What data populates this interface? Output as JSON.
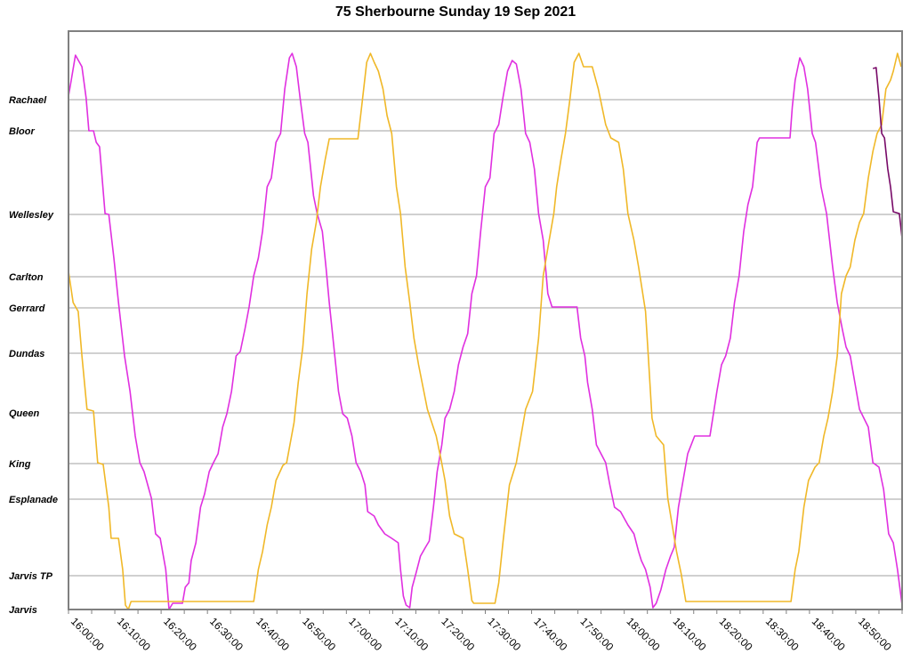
{
  "chart_data": {
    "type": "line",
    "title": "75 Sherbourne Sunday 19 Sep 2021",
    "xlabel": "",
    "ylabel": "",
    "x_start": "16:00:00",
    "x_range_minutes": [
      0,
      180
    ],
    "ylim": [
      0,
      6.5
    ],
    "grid": "horizontal at stops",
    "stops": [
      {
        "name": "Jarvis",
        "pos": 0
      },
      {
        "name": "Jarvis TP",
        "pos": 0.38
      },
      {
        "name": "Esplanade",
        "pos": 1.24
      },
      {
        "name": "King",
        "pos": 1.64
      },
      {
        "name": "Queen",
        "pos": 2.21
      },
      {
        "name": "Dundas",
        "pos": 2.88
      },
      {
        "name": "Gerrard",
        "pos": 3.39
      },
      {
        "name": "Carlton",
        "pos": 3.74
      },
      {
        "name": "Wellesley",
        "pos": 4.44
      },
      {
        "name": "Bloor",
        "pos": 5.38
      },
      {
        "name": "Rachael",
        "pos": 5.73
      }
    ],
    "x_ticks": [
      "16:00:00",
      "16:10:00",
      "16:20:00",
      "16:30:00",
      "16:40:00",
      "16:50:00",
      "17:00:00",
      "17:10:00",
      "17:20:00",
      "17:30:00",
      "17:40:00",
      "17:50:00",
      "18:00:00",
      "18:10:00",
      "18:20:00",
      "18:30:00",
      "18:40:00",
      "18:50:00"
    ],
    "series": [
      {
        "name": "vehicle-magenta",
        "color": "#e030e0",
        "points": [
          [
            0,
            5.77
          ],
          [
            0.6,
            5.95
          ],
          [
            1.5,
            6.23
          ],
          [
            2.9,
            6.1
          ],
          [
            3.8,
            5.75
          ],
          [
            4.4,
            5.38
          ],
          [
            5.4,
            5.38
          ],
          [
            6,
            5.25
          ],
          [
            6.7,
            5.2
          ],
          [
            7.9,
            4.45
          ],
          [
            8.7,
            4.44
          ],
          [
            9.8,
            3.95
          ],
          [
            10.8,
            3.45
          ],
          [
            12.1,
            2.85
          ],
          [
            13.3,
            2.45
          ],
          [
            14.4,
            1.95
          ],
          [
            15.4,
            1.65
          ],
          [
            16.3,
            1.55
          ],
          [
            17.9,
            1.25
          ],
          [
            18.8,
            0.85
          ],
          [
            19.8,
            0.8
          ],
          [
            21,
            0.45
          ],
          [
            21.7,
            0
          ],
          [
            22.5,
            0.07
          ],
          [
            24.6,
            0.07
          ],
          [
            25.2,
            0.25
          ],
          [
            26,
            0.3
          ],
          [
            26.5,
            0.55
          ],
          [
            27.5,
            0.75
          ],
          [
            28.5,
            1.15
          ],
          [
            29.4,
            1.3
          ],
          [
            30.4,
            1.55
          ],
          [
            31.3,
            1.65
          ],
          [
            32.3,
            1.75
          ],
          [
            33.3,
            2.05
          ],
          [
            34.2,
            2.2
          ],
          [
            35.2,
            2.45
          ],
          [
            36.2,
            2.85
          ],
          [
            37.1,
            2.9
          ],
          [
            38.1,
            3.15
          ],
          [
            39,
            3.4
          ],
          [
            40,
            3.75
          ],
          [
            41,
            3.95
          ],
          [
            41.9,
            4.25
          ],
          [
            42.9,
            4.75
          ],
          [
            43.8,
            4.85
          ],
          [
            44.8,
            5.25
          ],
          [
            45.8,
            5.35
          ],
          [
            46.7,
            5.85
          ],
          [
            47.7,
            6.2
          ],
          [
            48.3,
            6.25
          ],
          [
            49.2,
            6.1
          ],
          [
            50,
            5.75
          ],
          [
            51,
            5.35
          ],
          [
            51.7,
            5.25
          ],
          [
            52.9,
            4.65
          ],
          [
            53.7,
            4.45
          ],
          [
            54.8,
            4.25
          ],
          [
            55.6,
            3.85
          ],
          [
            56.3,
            3.45
          ],
          [
            57.3,
            2.95
          ],
          [
            58.3,
            2.45
          ],
          [
            59.2,
            2.2
          ],
          [
            60.2,
            2.15
          ],
          [
            61.2,
            1.95
          ],
          [
            62.1,
            1.65
          ],
          [
            63.1,
            1.55
          ],
          [
            64,
            1.4
          ],
          [
            64.6,
            1.1
          ],
          [
            66,
            1.05
          ],
          [
            66.9,
            0.95
          ],
          [
            68.3,
            0.85
          ],
          [
            69.8,
            0.8
          ],
          [
            71.2,
            0.75
          ],
          [
            71.7,
            0.45
          ],
          [
            72.3,
            0.15
          ],
          [
            72.9,
            0.05
          ],
          [
            73.7,
            0.02
          ],
          [
            74.2,
            0.25
          ],
          [
            75,
            0.4
          ],
          [
            76,
            0.6
          ],
          [
            77.1,
            0.7
          ],
          [
            77.9,
            0.77
          ],
          [
            78.8,
            1.15
          ],
          [
            79.6,
            1.55
          ],
          [
            80.6,
            1.85
          ],
          [
            81.3,
            2.15
          ],
          [
            82.3,
            2.25
          ],
          [
            83.3,
            2.45
          ],
          [
            84.2,
            2.75
          ],
          [
            85.2,
            2.95
          ],
          [
            86.2,
            3.1
          ],
          [
            87.1,
            3.55
          ],
          [
            88.1,
            3.75
          ],
          [
            89,
            4.25
          ],
          [
            90,
            4.75
          ],
          [
            91,
            4.85
          ],
          [
            91.9,
            5.35
          ],
          [
            92.9,
            5.45
          ],
          [
            93.8,
            5.75
          ],
          [
            94.8,
            6.05
          ],
          [
            95.8,
            6.17
          ],
          [
            96.7,
            6.13
          ],
          [
            97.7,
            5.85
          ],
          [
            98.7,
            5.35
          ],
          [
            99.6,
            5.25
          ],
          [
            100.6,
            4.95
          ],
          [
            101.5,
            4.45
          ],
          [
            102.5,
            4.15
          ],
          [
            103.5,
            3.55
          ],
          [
            104.4,
            3.4
          ],
          [
            109.8,
            3.4
          ],
          [
            110.6,
            3.05
          ],
          [
            111.5,
            2.85
          ],
          [
            112.1,
            2.55
          ],
          [
            113.1,
            2.25
          ],
          [
            114,
            1.85
          ],
          [
            115,
            1.75
          ],
          [
            116,
            1.65
          ],
          [
            116.9,
            1.4
          ],
          [
            117.9,
            1.15
          ],
          [
            119.2,
            1.1
          ],
          [
            120.8,
            0.95
          ],
          [
            122.1,
            0.85
          ],
          [
            123.1,
            0.65
          ],
          [
            123.7,
            0.55
          ],
          [
            124.6,
            0.45
          ],
          [
            125.6,
            0.25
          ],
          [
            126.2,
            0.02
          ],
          [
            126.9,
            0.07
          ],
          [
            127.9,
            0.22
          ],
          [
            129,
            0.45
          ],
          [
            130,
            0.6
          ],
          [
            130.8,
            0.7
          ],
          [
            131.7,
            1.15
          ],
          [
            132.7,
            1.45
          ],
          [
            133.7,
            1.75
          ],
          [
            135.2,
            1.95
          ],
          [
            138.5,
            1.95
          ],
          [
            139.4,
            2.25
          ],
          [
            140,
            2.45
          ],
          [
            141,
            2.75
          ],
          [
            141.9,
            2.85
          ],
          [
            142.9,
            3.05
          ],
          [
            143.8,
            3.45
          ],
          [
            144.8,
            3.75
          ],
          [
            145.8,
            4.25
          ],
          [
            146.7,
            4.55
          ],
          [
            147.7,
            4.75
          ],
          [
            148.7,
            5.25
          ],
          [
            149.2,
            5.3
          ],
          [
            155.8,
            5.3
          ],
          [
            156.3,
            5.65
          ],
          [
            156.9,
            5.95
          ],
          [
            157.9,
            6.2
          ],
          [
            158.8,
            6.1
          ],
          [
            159.6,
            5.85
          ],
          [
            160.6,
            5.35
          ],
          [
            161.3,
            5.25
          ],
          [
            162.5,
            4.75
          ],
          [
            163.7,
            4.45
          ],
          [
            165,
            3.85
          ],
          [
            166,
            3.45
          ],
          [
            167.1,
            3.15
          ],
          [
            167.9,
            2.95
          ],
          [
            168.8,
            2.85
          ],
          [
            169.8,
            2.55
          ],
          [
            170.8,
            2.25
          ],
          [
            172.7,
            2.05
          ],
          [
            173.7,
            1.65
          ],
          [
            175,
            1.6
          ],
          [
            176,
            1.35
          ],
          [
            177.1,
            0.85
          ],
          [
            178.1,
            0.75
          ],
          [
            179,
            0.45
          ],
          [
            180,
            0.05
          ]
        ]
      },
      {
        "name": "vehicle-gold",
        "color": "#f0b828",
        "points": [
          [
            0,
            3.8
          ],
          [
            1,
            3.45
          ],
          [
            2.1,
            3.35
          ],
          [
            2.9,
            2.85
          ],
          [
            4,
            2.25
          ],
          [
            5.4,
            2.23
          ],
          [
            6.3,
            1.65
          ],
          [
            7.5,
            1.63
          ],
          [
            8.7,
            1.15
          ],
          [
            9.2,
            0.8
          ],
          [
            10.8,
            0.8
          ],
          [
            11.7,
            0.45
          ],
          [
            12.3,
            0.05
          ],
          [
            12.9,
            0
          ],
          [
            13.5,
            0.09
          ],
          [
            40,
            0.09
          ],
          [
            41,
            0.45
          ],
          [
            41.9,
            0.65
          ],
          [
            42.9,
            0.95
          ],
          [
            43.8,
            1.15
          ],
          [
            44.8,
            1.45
          ],
          [
            46.3,
            1.62
          ],
          [
            47.1,
            1.65
          ],
          [
            48.7,
            2.1
          ],
          [
            49.6,
            2.55
          ],
          [
            50.6,
            2.95
          ],
          [
            51.5,
            3.55
          ],
          [
            52.5,
            4.05
          ],
          [
            53.5,
            4.35
          ],
          [
            54.4,
            4.75
          ],
          [
            55.4,
            5.05
          ],
          [
            56.3,
            5.29
          ],
          [
            62.5,
            5.29
          ],
          [
            63.3,
            5.65
          ],
          [
            64.4,
            6.15
          ],
          [
            65.2,
            6.25
          ],
          [
            66,
            6.15
          ],
          [
            66.9,
            6.05
          ],
          [
            67.9,
            5.85
          ],
          [
            68.8,
            5.55
          ],
          [
            69.8,
            5.35
          ],
          [
            70.8,
            4.75
          ],
          [
            71.7,
            4.45
          ],
          [
            72.7,
            3.85
          ],
          [
            73.7,
            3.45
          ],
          [
            74.6,
            3.05
          ],
          [
            75.6,
            2.75
          ],
          [
            77.5,
            2.25
          ],
          [
            79.4,
            1.95
          ],
          [
            80.4,
            1.7
          ],
          [
            81.3,
            1.45
          ],
          [
            82.3,
            1.05
          ],
          [
            83.3,
            0.85
          ],
          [
            85.2,
            0.8
          ],
          [
            86.2,
            0.45
          ],
          [
            87.1,
            0.1
          ],
          [
            87.5,
            0.07
          ],
          [
            92.1,
            0.07
          ],
          [
            92.9,
            0.3
          ],
          [
            93.8,
            0.75
          ],
          [
            95.2,
            1.4
          ],
          [
            96.7,
            1.65
          ],
          [
            98.7,
            2.25
          ],
          [
            100.2,
            2.45
          ],
          [
            101.5,
            3.05
          ],
          [
            102.5,
            3.75
          ],
          [
            103.8,
            4.15
          ],
          [
            104.8,
            4.45
          ],
          [
            105.4,
            4.75
          ],
          [
            106.3,
            5.05
          ],
          [
            107.3,
            5.35
          ],
          [
            108.3,
            5.75
          ],
          [
            109.2,
            6.15
          ],
          [
            110.2,
            6.25
          ],
          [
            111.2,
            6.1
          ],
          [
            113.1,
            6.1
          ],
          [
            114.4,
            5.85
          ],
          [
            116,
            5.45
          ],
          [
            117.1,
            5.3
          ],
          [
            118.8,
            5.25
          ],
          [
            119.8,
            4.95
          ],
          [
            120.8,
            4.45
          ],
          [
            122.1,
            4.15
          ],
          [
            123.1,
            3.85
          ],
          [
            124.6,
            3.35
          ],
          [
            125.2,
            2.85
          ],
          [
            126,
            2.15
          ],
          [
            126.9,
            1.95
          ],
          [
            128.5,
            1.85
          ],
          [
            129.4,
            1.25
          ],
          [
            131.3,
            0.65
          ],
          [
            132.3,
            0.4
          ],
          [
            133.3,
            0.09
          ],
          [
            156,
            0.09
          ],
          [
            156.9,
            0.45
          ],
          [
            157.7,
            0.65
          ],
          [
            158.8,
            1.15
          ],
          [
            159.8,
            1.45
          ],
          [
            161.2,
            1.6
          ],
          [
            162.1,
            1.65
          ],
          [
            163.1,
            1.95
          ],
          [
            164,
            2.15
          ],
          [
            165,
            2.45
          ],
          [
            166,
            2.85
          ],
          [
            166.9,
            3.55
          ],
          [
            167.9,
            3.75
          ],
          [
            168.8,
            3.85
          ],
          [
            169.8,
            4.15
          ],
          [
            170.8,
            4.35
          ],
          [
            171.7,
            4.45
          ],
          [
            172.7,
            4.85
          ],
          [
            173.7,
            5.15
          ],
          [
            174.6,
            5.35
          ],
          [
            175.6,
            5.45
          ],
          [
            176.5,
            5.85
          ],
          [
            177.5,
            5.95
          ],
          [
            178.1,
            6.05
          ],
          [
            179,
            6.25
          ],
          [
            179.8,
            6.1
          ]
        ]
      },
      {
        "name": "vehicle-purple",
        "color": "#780a68",
        "points": [
          [
            173.7,
            6.08
          ],
          [
            174.4,
            6.09
          ],
          [
            175,
            5.75
          ],
          [
            175.6,
            5.35
          ],
          [
            176.2,
            5.3
          ],
          [
            176.9,
            4.95
          ],
          [
            177.5,
            4.75
          ],
          [
            178.1,
            4.47
          ],
          [
            179.4,
            4.45
          ],
          [
            180,
            4.17
          ]
        ]
      }
    ]
  }
}
